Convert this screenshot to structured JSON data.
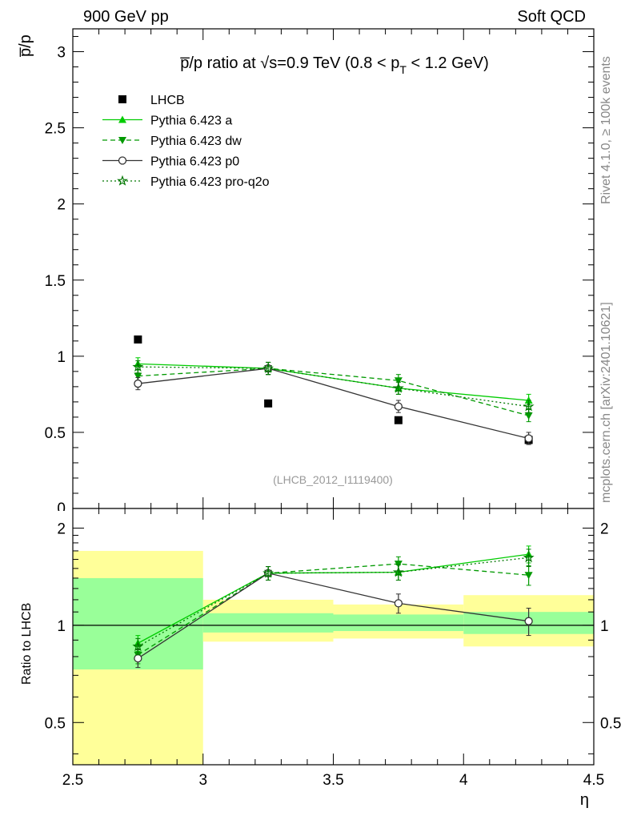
{
  "header": {
    "left": "900 GeV pp",
    "right": "Soft QCD"
  },
  "side_labels": {
    "rivet": "Rivet 4.1.0, ≥ 100k events",
    "mcplots": "mcplots.cern.ch [arXiv:2401.10621]"
  },
  "chart_data": [
    {
      "type": "scatter",
      "panel": "main",
      "title_parts": {
        "pre": "p̅/p ratio at √s=0.9 TeV (0.8 < p",
        "sub": "T",
        "post": " < 1.2 GeV)"
      },
      "ylabel": "p̅/p",
      "watermark": "(LHCB_2012_I1119400)",
      "xlim": [
        2.5,
        4.5
      ],
      "ylim": [
        0,
        3.15
      ],
      "yticks": [
        0.5,
        1,
        1.5,
        2,
        2.5,
        3
      ],
      "ytick_labels": [
        "0.5",
        "1",
        "1.5",
        "2",
        "2.5",
        "3"
      ],
      "y_bottom_label": "0",
      "x": [
        2.75,
        3.25,
        3.75,
        4.25
      ],
      "series": [
        {
          "name": "LHCB",
          "values": [
            1.11,
            0.69,
            0.58,
            0.45
          ],
          "color": "#000000",
          "marker": "square",
          "line": "none"
        },
        {
          "name": "Pythia 6.423 a",
          "values": [
            0.95,
            0.92,
            0.79,
            0.71
          ],
          "errors": [
            0.04,
            0.04,
            0.04,
            0.04
          ],
          "color": "#00cc00",
          "marker": "triangle-up",
          "line": "solid"
        },
        {
          "name": "Pythia 6.423 dw",
          "values": [
            0.87,
            0.92,
            0.84,
            0.61
          ],
          "errors": [
            0.04,
            0.04,
            0.04,
            0.04
          ],
          "color": "#009900",
          "marker": "triangle-down",
          "line": "dashed"
        },
        {
          "name": "Pythia 6.423 p0",
          "values": [
            0.82,
            0.92,
            0.67,
            0.46
          ],
          "errors": [
            0.04,
            0.04,
            0.04,
            0.04
          ],
          "color": "#333333",
          "marker": "circle-open",
          "line": "solid"
        },
        {
          "name": "Pythia 6.423 pro-q2o",
          "values": [
            0.93,
            0.92,
            0.79,
            0.67
          ],
          "errors": [
            0.04,
            0.04,
            0.04,
            0.04
          ],
          "color": "#007700",
          "marker": "star-open",
          "line": "dotted"
        }
      ]
    },
    {
      "type": "scatter",
      "panel": "ratio",
      "ylabel": "Ratio to LHCB",
      "xlabel": "η",
      "xlim": [
        2.5,
        4.5
      ],
      "ylim": [
        0.37,
        2.3
      ],
      "yscale": "log",
      "yticks": [
        0.5,
        1,
        2
      ],
      "ytick_labels": [
        "0.5",
        "1",
        "2"
      ],
      "xticks": [
        2.5,
        3,
        3.5,
        4,
        4.5
      ],
      "xtick_labels": [
        "2.5",
        "3",
        "3.5",
        "4",
        "4.5"
      ],
      "x": [
        2.75,
        3.25,
        3.75,
        4.25
      ],
      "bands": [
        {
          "x": [
            2.5,
            3.0
          ],
          "inner": [
            0.73,
            1.4
          ],
          "outer": [
            0.37,
            1.7
          ]
        },
        {
          "x": [
            3.0,
            3.5
          ],
          "inner": [
            0.95,
            1.09
          ],
          "outer": [
            0.89,
            1.2
          ]
        },
        {
          "x": [
            3.5,
            4.0
          ],
          "inner": [
            0.96,
            1.08
          ],
          "outer": [
            0.91,
            1.16
          ]
        },
        {
          "x": [
            4.0,
            4.5
          ],
          "inner": [
            0.94,
            1.1
          ],
          "outer": [
            0.86,
            1.24
          ]
        }
      ],
      "series": [
        {
          "name": "Pythia 6.423 a",
          "values": [
            0.88,
            1.45,
            1.46,
            1.66
          ],
          "errors": [
            0.05,
            0.07,
            0.08,
            0.1
          ],
          "color": "#00cc00",
          "marker": "triangle-up",
          "line": "solid"
        },
        {
          "name": "Pythia 6.423 dw",
          "values": [
            0.81,
            1.45,
            1.55,
            1.43
          ],
          "errors": [
            0.05,
            0.07,
            0.08,
            0.1
          ],
          "color": "#009900",
          "marker": "triangle-down",
          "line": "dashed"
        },
        {
          "name": "Pythia 6.423 p0",
          "values": [
            0.79,
            1.45,
            1.17,
            1.03
          ],
          "errors": [
            0.05,
            0.07,
            0.08,
            0.1
          ],
          "color": "#333333",
          "marker": "circle-open",
          "line": "solid"
        },
        {
          "name": "Pythia 6.423 pro-q2o",
          "values": [
            0.86,
            1.45,
            1.46,
            1.62
          ],
          "errors": [
            0.05,
            0.07,
            0.08,
            0.1
          ],
          "color": "#007700",
          "marker": "star-open",
          "line": "dotted"
        }
      ]
    }
  ]
}
